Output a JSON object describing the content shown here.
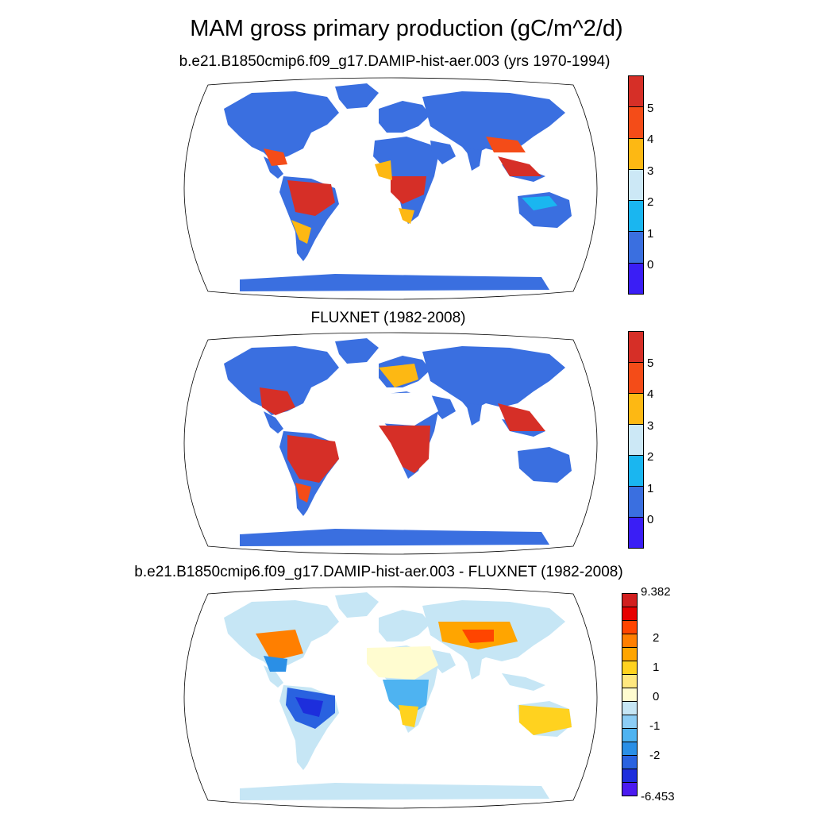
{
  "chart_data": {
    "title": "MAM gross primary production (gC/m^2/d)",
    "type": "heatmap",
    "panels": [
      {
        "subtitle": "b.e21.B1850cmip6.f09_g17.DAMIP-hist-aer.003 (yrs 1970-1994)",
        "colorbar": {
          "labels": [
            "5",
            "4",
            "3",
            "2",
            "1",
            "0"
          ],
          "colors": [
            "#d62f27",
            "#f44c18",
            "#fdb813",
            "#cce8f6",
            "#1ab6f0",
            "#3a6fe0",
            "#3a1ef5"
          ]
        },
        "regions": [
          {
            "region": "Amazon",
            "value": 5.5
          },
          {
            "region": "Congo Basin",
            "value": 5.5
          },
          {
            "region": "Southeast Asia",
            "value": 5.5
          },
          {
            "region": "Southeastern United States",
            "value": 4.5
          },
          {
            "region": "Sahara",
            "value": 0.5
          },
          {
            "region": "Arabian Peninsula",
            "value": 0.5
          },
          {
            "region": "Central Australia",
            "value": 0.5
          },
          {
            "region": "Antarctica",
            "value": 0.5
          },
          {
            "region": "Siberia",
            "value": 0.5
          },
          {
            "region": "Canada",
            "value": 0.5
          }
        ]
      },
      {
        "subtitle": "FLUXNET (1982-2008)",
        "colorbar": {
          "labels": [
            "5",
            "4",
            "3",
            "2",
            "1",
            "0"
          ],
          "colors": [
            "#d62f27",
            "#f44c18",
            "#fdb813",
            "#cce8f6",
            "#1ab6f0",
            "#3a6fe0",
            "#3a1ef5"
          ]
        },
        "regions": [
          {
            "region": "Amazon",
            "value": 5.5
          },
          {
            "region": "Central Africa",
            "value": 5.5
          },
          {
            "region": "Southeast Asia",
            "value": 5.5
          },
          {
            "region": "Eastern United States",
            "value": 5.0
          },
          {
            "region": "Europe",
            "value": 3.5
          },
          {
            "region": "Sahara",
            "value": null
          },
          {
            "region": "Central Australia",
            "value": 0.5
          },
          {
            "region": "Canada",
            "value": 0.5
          },
          {
            "region": "Siberia",
            "value": 0.5
          }
        ]
      },
      {
        "subtitle": "b.e21.B1850cmip6.f09_g17.DAMIP-hist-aer.003 - FLUXNET (1982-2008)",
        "colorbar": {
          "labels": [
            "9.382",
            "2",
            "1",
            "0",
            "-1",
            "-2",
            "-6.453"
          ],
          "colors": [
            "#d11f1f",
            "#e60000",
            "#ff4500",
            "#ff7f00",
            "#ffa500",
            "#ffd21f",
            "#ffe87f",
            "#fffcd0",
            "#c6e6f5",
            "#8ccdf5",
            "#4eb3f1",
            "#2a8fe6",
            "#2962e0",
            "#1d2edc",
            "#4b1bf0"
          ]
        },
        "regions": [
          {
            "region": "Amazon",
            "value": -3
          },
          {
            "region": "Central Africa",
            "value": -2
          },
          {
            "region": "Sahara",
            "value": 0
          },
          {
            "region": "Eastern United States",
            "value": -1
          },
          {
            "region": "Central Asia",
            "value": 1
          },
          {
            "region": "Australia",
            "value": 1
          },
          {
            "region": "Europe",
            "value": -0.5
          },
          {
            "region": "Siberia",
            "value": 0
          }
        ]
      }
    ]
  }
}
